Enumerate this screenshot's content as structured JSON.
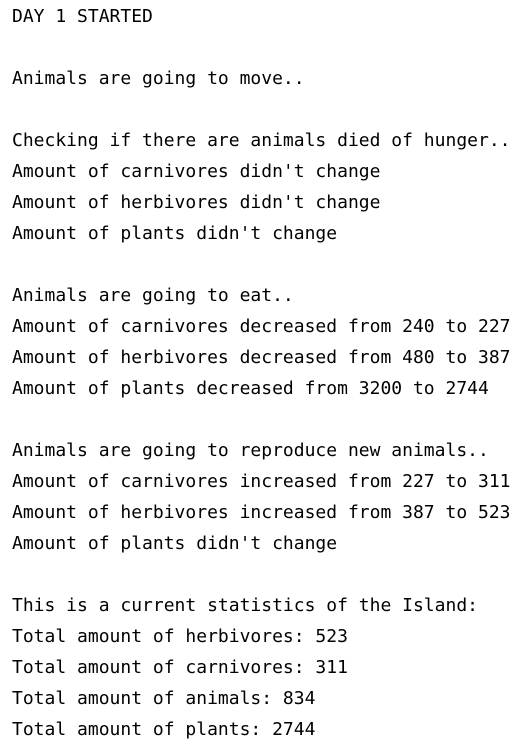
{
  "console": {
    "blocks": [
      [
        "DAY 1 STARTED"
      ],
      [
        "Animals are going to move.."
      ],
      [
        "Checking if there are animals died of hunger..",
        "Amount of carnivores didn't change",
        "Amount of herbivores didn't change",
        "Amount of plants didn't change"
      ],
      [
        "Animals are going to eat..",
        "Amount of carnivores decreased from 240 to 227",
        "Amount of herbivores decreased from 480 to 387",
        "Amount of plants decreased from 3200 to 2744"
      ],
      [
        "Animals are going to reproduce new animals..",
        "Amount of carnivores increased from 227 to 311",
        "Amount of herbivores increased from 387 to 523",
        "Amount of plants didn't change"
      ],
      [
        "This is a current statistics of the Island:",
        "Total amount of herbivores: 523",
        "Total amount of carnivores: 311",
        "Total amount of animals: 834",
        "Total amount of plants: 2744"
      ]
    ]
  }
}
